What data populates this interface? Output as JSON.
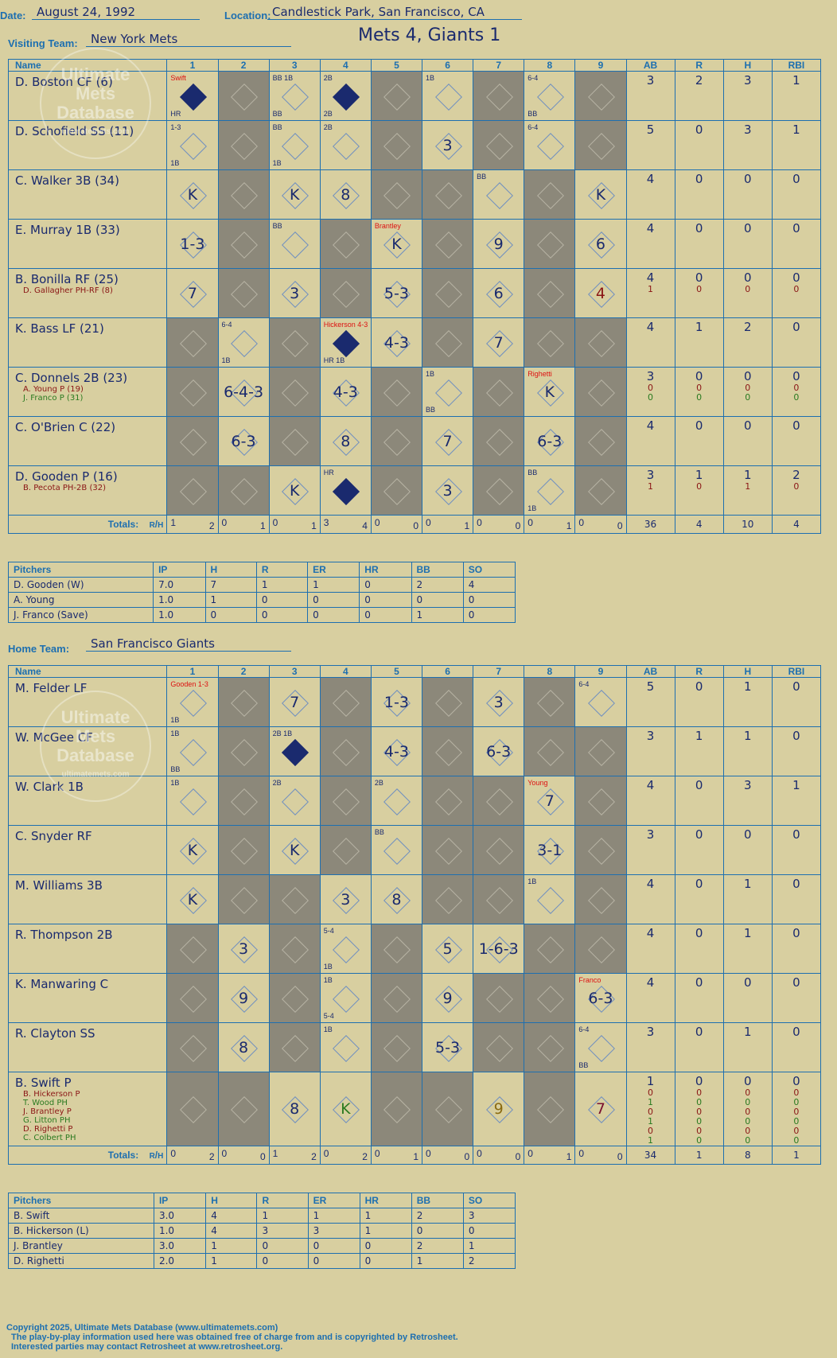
{
  "header": {
    "date_label": "Date:",
    "date": "August 24, 1992",
    "location_label": "Location:",
    "location": "Candlestick Park, San Francisco, CA",
    "title": "Mets 4, Giants 1",
    "visiting_label": "Visiting Team:",
    "visiting": "New York Mets",
    "home_label": "Home Team:",
    "home": "San Francisco Giants"
  },
  "columns": {
    "name": "Name",
    "innings": [
      "1",
      "2",
      "3",
      "4",
      "5",
      "6",
      "7",
      "8",
      "9"
    ],
    "stats": [
      "AB",
      "R",
      "H",
      "RBI"
    ],
    "totals": "Totals:",
    "r": "R",
    "h": "H"
  },
  "watermark": {
    "line1": "Ultimate",
    "line2": "Mets",
    "line3": "Database",
    "line4": "ultimatemets.com"
  },
  "visitors": {
    "batters": [
      {
        "name": "D. Boston CF (6)",
        "subs": [],
        "stats": [
          "3",
          "2",
          "3",
          "1"
        ],
        "substats": []
      },
      {
        "name": "D. Schofield SS (11)",
        "subs": [],
        "stats": [
          "5",
          "0",
          "3",
          "1"
        ],
        "substats": []
      },
      {
        "name": "C. Walker 3B (34)",
        "subs": [],
        "stats": [
          "4",
          "0",
          "0",
          "0"
        ],
        "substats": []
      },
      {
        "name": "E. Murray 1B (33)",
        "subs": [],
        "stats": [
          "4",
          "0",
          "0",
          "0"
        ],
        "substats": []
      },
      {
        "name": "B. Bonilla RF (25)",
        "subs": [
          "D. Gallagher PH-RF (8)"
        ],
        "stats": [
          "4",
          "0",
          "0",
          "0"
        ],
        "substats": [
          [
            "1",
            "0",
            "0",
            "0"
          ]
        ]
      },
      {
        "name": "K. Bass LF (21)",
        "subs": [],
        "stats": [
          "4",
          "1",
          "2",
          "0"
        ],
        "substats": []
      },
      {
        "name": "C. Donnels 2B (23)",
        "subs": [
          "A. Young P (19)",
          "J. Franco P (31)"
        ],
        "stats": [
          "3",
          "0",
          "0",
          "0"
        ],
        "substats": [
          [
            "0",
            "0",
            "0",
            "0"
          ],
          [
            "0",
            "0",
            "0",
            "0"
          ]
        ]
      },
      {
        "name": "C. O'Brien C (22)",
        "subs": [],
        "stats": [
          "4",
          "0",
          "0",
          "0"
        ],
        "substats": []
      },
      {
        "name": "D. Gooden P (16)",
        "subs": [
          "B. Pecota PH-2B (32)"
        ],
        "stats": [
          "3",
          "1",
          "1",
          "2"
        ],
        "substats": [
          [
            "1",
            "0",
            "1",
            "0"
          ]
        ]
      }
    ],
    "grid": [
      [
        {
          "t": "",
          "run": true,
          "a": [
            "Swift",
            "HR"
          ]
        },
        {
          "d": 1
        },
        {
          "t": "",
          "a": [
            "BB 1B",
            "BB"
          ]
        },
        {
          "t": "",
          "run": true,
          "a": [
            "2B",
            "2B"
          ]
        },
        {
          "d": 1
        },
        {
          "t": "",
          "a": [
            "1B"
          ]
        },
        {
          "d": 1
        },
        {
          "t": "",
          "a": [
            "6-4",
            "BB"
          ]
        },
        {
          "d": 1
        }
      ],
      [
        {
          "t": "",
          "a": [
            "1-3",
            "1B"
          ]
        },
        {
          "d": 1
        },
        {
          "t": "",
          "a": [
            "BB",
            "1B"
          ]
        },
        {
          "t": "",
          "a": [
            "2B"
          ]
        },
        {
          "d": 1
        },
        {
          "t": "3"
        },
        {
          "d": 1
        },
        {
          "t": "",
          "a": [
            "6-4"
          ]
        },
        {
          "d": 1
        }
      ],
      [
        {
          "t": "K"
        },
        {
          "d": 1
        },
        {
          "t": "K"
        },
        {
          "t": "8"
        },
        {
          "d": 1
        },
        {
          "d": 1
        },
        {
          "t": "",
          "a": [
            "BB"
          ]
        },
        {
          "d": 1
        },
        {
          "t": "K"
        }
      ],
      [
        {
          "t": "1-3"
        },
        {
          "d": 1
        },
        {
          "t": "",
          "a": [
            "BB"
          ]
        },
        {
          "d": 1
        },
        {
          "t": "K",
          "a": [
            "Brantley"
          ]
        },
        {
          "d": 1
        },
        {
          "t": "9"
        },
        {
          "d": 1
        },
        {
          "t": "6"
        }
      ],
      [
        {
          "t": "7"
        },
        {
          "d": 1
        },
        {
          "t": "3"
        },
        {
          "d": 1
        },
        {
          "t": "5-3"
        },
        {
          "d": 1
        },
        {
          "t": "6"
        },
        {
          "d": 1
        },
        {
          "t": "4",
          "c": "darkred"
        }
      ],
      [
        {
          "d": 1
        },
        {
          "t": "",
          "a": [
            "6-4",
            "1B"
          ]
        },
        {
          "d": 1
        },
        {
          "t": "",
          "run": true,
          "a": [
            "Hickerson 4-3",
            "HR 1B"
          ]
        },
        {
          "t": "4-3"
        },
        {
          "d": 1
        },
        {
          "t": "7"
        },
        {
          "d": 1
        },
        {
          "d": 1
        }
      ],
      [
        {
          "d": 1
        },
        {
          "t": "6-4-3"
        },
        {
          "d": 1
        },
        {
          "t": "4-3"
        },
        {
          "d": 1
        },
        {
          "t": "",
          "a": [
            "1B",
            "BB"
          ]
        },
        {
          "d": 1
        },
        {
          "t": "K",
          "a": [
            "Righetti"
          ]
        },
        {
          "d": 1
        }
      ],
      [
        {
          "d": 1
        },
        {
          "t": "6-3"
        },
        {
          "d": 1
        },
        {
          "t": "8"
        },
        {
          "d": 1
        },
        {
          "t": "7"
        },
        {
          "d": 1
        },
        {
          "t": "6-3"
        },
        {
          "d": 1
        }
      ],
      [
        {
          "d": 1
        },
        {
          "d": 1
        },
        {
          "t": "K"
        },
        {
          "t": "",
          "run": true,
          "a": [
            "HR"
          ]
        },
        {
          "d": 1
        },
        {
          "t": "3"
        },
        {
          "d": 1
        },
        {
          "t": "",
          "c": "darkred",
          "a": [
            "BB",
            "1B"
          ]
        },
        {
          "d": 1
        }
      ]
    ],
    "totals": [
      [
        "1",
        "2"
      ],
      [
        "0",
        "1"
      ],
      [
        "0",
        "1"
      ],
      [
        "3",
        "4"
      ],
      [
        "0",
        "0"
      ],
      [
        "0",
        "1"
      ],
      [
        "0",
        "0"
      ],
      [
        "0",
        "1"
      ],
      [
        "0",
        "0"
      ]
    ],
    "total_stats": [
      "36",
      "4",
      "10",
      "4"
    ],
    "pitchers": {
      "headers": [
        "Pitchers",
        "IP",
        "H",
        "R",
        "ER",
        "HR",
        "BB",
        "SO"
      ],
      "rows": [
        [
          "D. Gooden (W)",
          "7.0",
          "7",
          "1",
          "1",
          "0",
          "2",
          "4"
        ],
        [
          "A. Young",
          "1.0",
          "1",
          "0",
          "0",
          "0",
          "0",
          "0"
        ],
        [
          "J. Franco (Save)",
          "1.0",
          "0",
          "0",
          "0",
          "0",
          "1",
          "0"
        ]
      ]
    }
  },
  "home": {
    "batters": [
      {
        "name": "M. Felder LF",
        "subs": [],
        "stats": [
          "5",
          "0",
          "1",
          "0"
        ],
        "substats": []
      },
      {
        "name": "W. McGee CF",
        "subs": [],
        "stats": [
          "3",
          "1",
          "1",
          "0"
        ],
        "substats": []
      },
      {
        "name": "W. Clark 1B",
        "subs": [],
        "stats": [
          "4",
          "0",
          "3",
          "1"
        ],
        "substats": []
      },
      {
        "name": "C. Snyder RF",
        "subs": [],
        "stats": [
          "3",
          "0",
          "0",
          "0"
        ],
        "substats": []
      },
      {
        "name": "M. Williams 3B",
        "subs": [],
        "stats": [
          "4",
          "0",
          "1",
          "0"
        ],
        "substats": []
      },
      {
        "name": "R. Thompson 2B",
        "subs": [],
        "stats": [
          "4",
          "0",
          "1",
          "0"
        ],
        "substats": []
      },
      {
        "name": "K. Manwaring C",
        "subs": [],
        "stats": [
          "4",
          "0",
          "0",
          "0"
        ],
        "substats": []
      },
      {
        "name": "R. Clayton SS",
        "subs": [],
        "stats": [
          "3",
          "0",
          "1",
          "0"
        ],
        "substats": []
      },
      {
        "name": "B. Swift P",
        "subs": [
          "B. Hickerson P",
          "T. Wood PH",
          "J. Brantley P",
          "G. Litton PH",
          "D. Righetti P",
          "C. Colbert PH"
        ],
        "stats": [
          "1",
          "0",
          "0",
          "0"
        ],
        "substats": [
          [
            "0",
            "0",
            "0",
            "0"
          ],
          [
            "1",
            "0",
            "0",
            "0"
          ],
          [
            "0",
            "0",
            "0",
            "0"
          ],
          [
            "1",
            "0",
            "0",
            "0"
          ],
          [
            "0",
            "0",
            "0",
            "0"
          ],
          [
            "1",
            "0",
            "0",
            "0"
          ]
        ]
      }
    ],
    "grid": [
      [
        {
          "t": "",
          "a": [
            "Gooden 1-3",
            "1B"
          ]
        },
        {
          "d": 1
        },
        {
          "t": "7"
        },
        {
          "d": 1
        },
        {
          "t": "1-3"
        },
        {
          "d": 1
        },
        {
          "t": "3"
        },
        {
          "d": 1
        },
        {
          "t": "",
          "a": [
            "6-4"
          ]
        }
      ],
      [
        {
          "t": "",
          "a": [
            "1B",
            "BB"
          ]
        },
        {
          "d": 1
        },
        {
          "t": "",
          "run": true,
          "a": [
            "2B 1B"
          ]
        },
        {
          "d": 1
        },
        {
          "t": "4-3"
        },
        {
          "d": 1
        },
        {
          "t": "6-3"
        },
        {
          "d": 1
        },
        {
          "d": 1
        }
      ],
      [
        {
          "t": "",
          "a": [
            "1B"
          ]
        },
        {
          "d": 1
        },
        {
          "t": "",
          "a": [
            "2B"
          ]
        },
        {
          "d": 1
        },
        {
          "t": "",
          "a": [
            "2B"
          ]
        },
        {
          "d": 1
        },
        {
          "d": 1
        },
        {
          "t": "7",
          "a": [
            "Young"
          ]
        },
        {
          "d": 1
        }
      ],
      [
        {
          "t": "K"
        },
        {
          "d": 1
        },
        {
          "t": "K"
        },
        {
          "d": 1
        },
        {
          "t": "",
          "a": [
            "BB"
          ]
        },
        {
          "d": 1
        },
        {
          "d": 1
        },
        {
          "t": "3-1"
        },
        {
          "d": 1
        }
      ],
      [
        {
          "t": "K"
        },
        {
          "d": 1
        },
        {
          "d": 1
        },
        {
          "t": "3"
        },
        {
          "t": "8"
        },
        {
          "d": 1
        },
        {
          "d": 1
        },
        {
          "t": "",
          "a": [
            "1B"
          ]
        },
        {
          "d": 1
        }
      ],
      [
        {
          "d": 1
        },
        {
          "t": "3"
        },
        {
          "d": 1
        },
        {
          "t": "",
          "a": [
            "5-4",
            "1B"
          ]
        },
        {
          "d": 1
        },
        {
          "t": "5"
        },
        {
          "t": "1-6-3"
        },
        {
          "d": 1
        },
        {
          "d": 1
        }
      ],
      [
        {
          "d": 1
        },
        {
          "t": "9"
        },
        {
          "d": 1
        },
        {
          "t": "",
          "a": [
            "1B",
            "5-4"
          ]
        },
        {
          "d": 1
        },
        {
          "t": "9"
        },
        {
          "d": 1
        },
        {
          "d": 1
        },
        {
          "t": "6-3",
          "a": [
            "Franco"
          ]
        }
      ],
      [
        {
          "d": 1
        },
        {
          "t": "8"
        },
        {
          "d": 1
        },
        {
          "t": "",
          "a": [
            "1B"
          ]
        },
        {
          "d": 1
        },
        {
          "t": "5-3"
        },
        {
          "d": 1
        },
        {
          "d": 1
        },
        {
          "t": "",
          "a": [
            "6-4",
            "BB"
          ]
        }
      ],
      [
        {
          "d": 1
        },
        {
          "d": 1
        },
        {
          "t": "8"
        },
        {
          "t": "K",
          "c": "green"
        },
        {
          "d": 1
        },
        {
          "d": 1
        },
        {
          "t": "9",
          "c": "brown"
        },
        {
          "d": 1
        },
        {
          "t": "7",
          "c": "wine"
        }
      ]
    ],
    "totals": [
      [
        "0",
        "2"
      ],
      [
        "0",
        "0"
      ],
      [
        "1",
        "2"
      ],
      [
        "0",
        "2"
      ],
      [
        "0",
        "1"
      ],
      [
        "0",
        "0"
      ],
      [
        "0",
        "0"
      ],
      [
        "0",
        "1"
      ],
      [
        "0",
        "0"
      ]
    ],
    "total_stats": [
      "34",
      "1",
      "8",
      "1"
    ],
    "pitchers": {
      "headers": [
        "Pitchers",
        "IP",
        "H",
        "R",
        "ER",
        "HR",
        "BB",
        "SO"
      ],
      "rows": [
        [
          "B. Swift",
          "3.0",
          "4",
          "1",
          "1",
          "1",
          "2",
          "3"
        ],
        [
          "B. Hickerson (L)",
          "1.0",
          "4",
          "3",
          "3",
          "1",
          "0",
          "0"
        ],
        [
          "J. Brantley",
          "3.0",
          "1",
          "0",
          "0",
          "0",
          "2",
          "1"
        ],
        [
          "D. Righetti",
          "2.0",
          "1",
          "0",
          "0",
          "0",
          "1",
          "2"
        ]
      ]
    }
  },
  "footer": {
    "line1": "Copyright 2025, Ultimate Mets Database (www.ultimatemets.com)",
    "line2": "The play-by-play information used here was obtained free of charge from and is copyrighted by Retrosheet.",
    "line3": "Interested parties may contact Retrosheet at www.retrosheet.org."
  }
}
